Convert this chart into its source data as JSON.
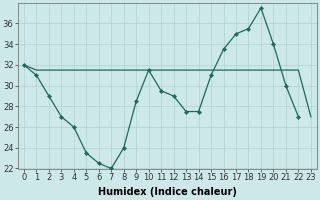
{
  "xlabel": "Humidex (Indice chaleur)",
  "x_wavy": [
    0,
    1,
    2,
    3,
    4,
    5,
    6,
    7,
    8,
    9,
    10,
    11,
    12,
    13,
    14,
    15,
    16,
    17,
    18,
    19,
    20,
    21,
    22
  ],
  "y_wavy": [
    32,
    31,
    29,
    27,
    26,
    23.5,
    22.5,
    22,
    24,
    28.5,
    31.5,
    29.5,
    29,
    27.5,
    27.5,
    31,
    33.5,
    35,
    35.5,
    37.5,
    34,
    30,
    27
  ],
  "x_flat": [
    0,
    1,
    2,
    3,
    4,
    5,
    6,
    7,
    8,
    9,
    10,
    11,
    12,
    13,
    14,
    15,
    16,
    17,
    18,
    19,
    20,
    21,
    22,
    23
  ],
  "y_flat": [
    32,
    31.5,
    31.5,
    31.5,
    31.5,
    31.5,
    31.5,
    31.5,
    31.5,
    31.5,
    31.5,
    31.5,
    31.5,
    31.5,
    31.5,
    31.5,
    31.5,
    31.5,
    31.5,
    31.5,
    31.5,
    31.5,
    31.5,
    27
  ],
  "ylim": [
    22,
    38
  ],
  "yticks": [
    22,
    24,
    26,
    28,
    30,
    32,
    34,
    36
  ],
  "xticks": [
    0,
    1,
    2,
    3,
    4,
    5,
    6,
    7,
    8,
    9,
    10,
    11,
    12,
    13,
    14,
    15,
    16,
    17,
    18,
    19,
    20,
    21,
    22,
    23
  ],
  "xlim": [
    -0.5,
    23.5
  ],
  "bg_color": "#cce8e8",
  "line_color": "#1a6b5a",
  "grid_color": "#b0d0d0",
  "tick_fontsize": 6,
  "label_fontsize": 7
}
